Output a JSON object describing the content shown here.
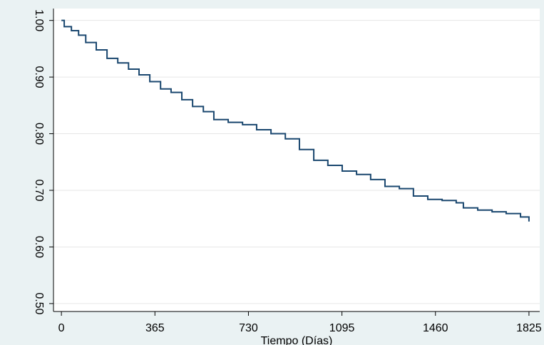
{
  "chart_data": {
    "type": "line",
    "step": true,
    "x_label": "Tiempo (Días)",
    "x": [
      0,
      11,
      39,
      67,
      95,
      136,
      178,
      220,
      262,
      303,
      345,
      387,
      428,
      470,
      512,
      554,
      595,
      651,
      707,
      762,
      818,
      874,
      929,
      985,
      1040,
      1096,
      1152,
      1207,
      1263,
      1319,
      1374,
      1430,
      1486,
      1541,
      1569,
      1625,
      1681,
      1736,
      1792,
      1825
    ],
    "series": [
      {
        "color": "#1a476f",
        "values": [
          1.0,
          0.989,
          0.982,
          0.974,
          0.961,
          0.948,
          0.933,
          0.925,
          0.914,
          0.904,
          0.892,
          0.879,
          0.873,
          0.86,
          0.848,
          0.839,
          0.825,
          0.82,
          0.816,
          0.807,
          0.8,
          0.791,
          0.772,
          0.753,
          0.744,
          0.734,
          0.728,
          0.719,
          0.707,
          0.703,
          0.69,
          0.684,
          0.682,
          0.678,
          0.669,
          0.665,
          0.662,
          0.659,
          0.653,
          0.645
        ]
      }
    ],
    "xlim": [
      -31,
      1867
    ],
    "xticks": [
      0,
      365,
      730,
      1095,
      1460,
      1825
    ],
    "ylim": [
      0.486,
      1.021
    ],
    "yticks": [
      {
        "value": 0.5,
        "label": "0.50"
      },
      {
        "value": 0.6,
        "label": "0.60"
      },
      {
        "value": 0.7,
        "label": "0.70"
      },
      {
        "value": 0.8,
        "label": "0.80"
      },
      {
        "value": 0.9,
        "label": "0.90"
      },
      {
        "value": 1.0,
        "label": "1.00"
      }
    ],
    "grid": true
  }
}
